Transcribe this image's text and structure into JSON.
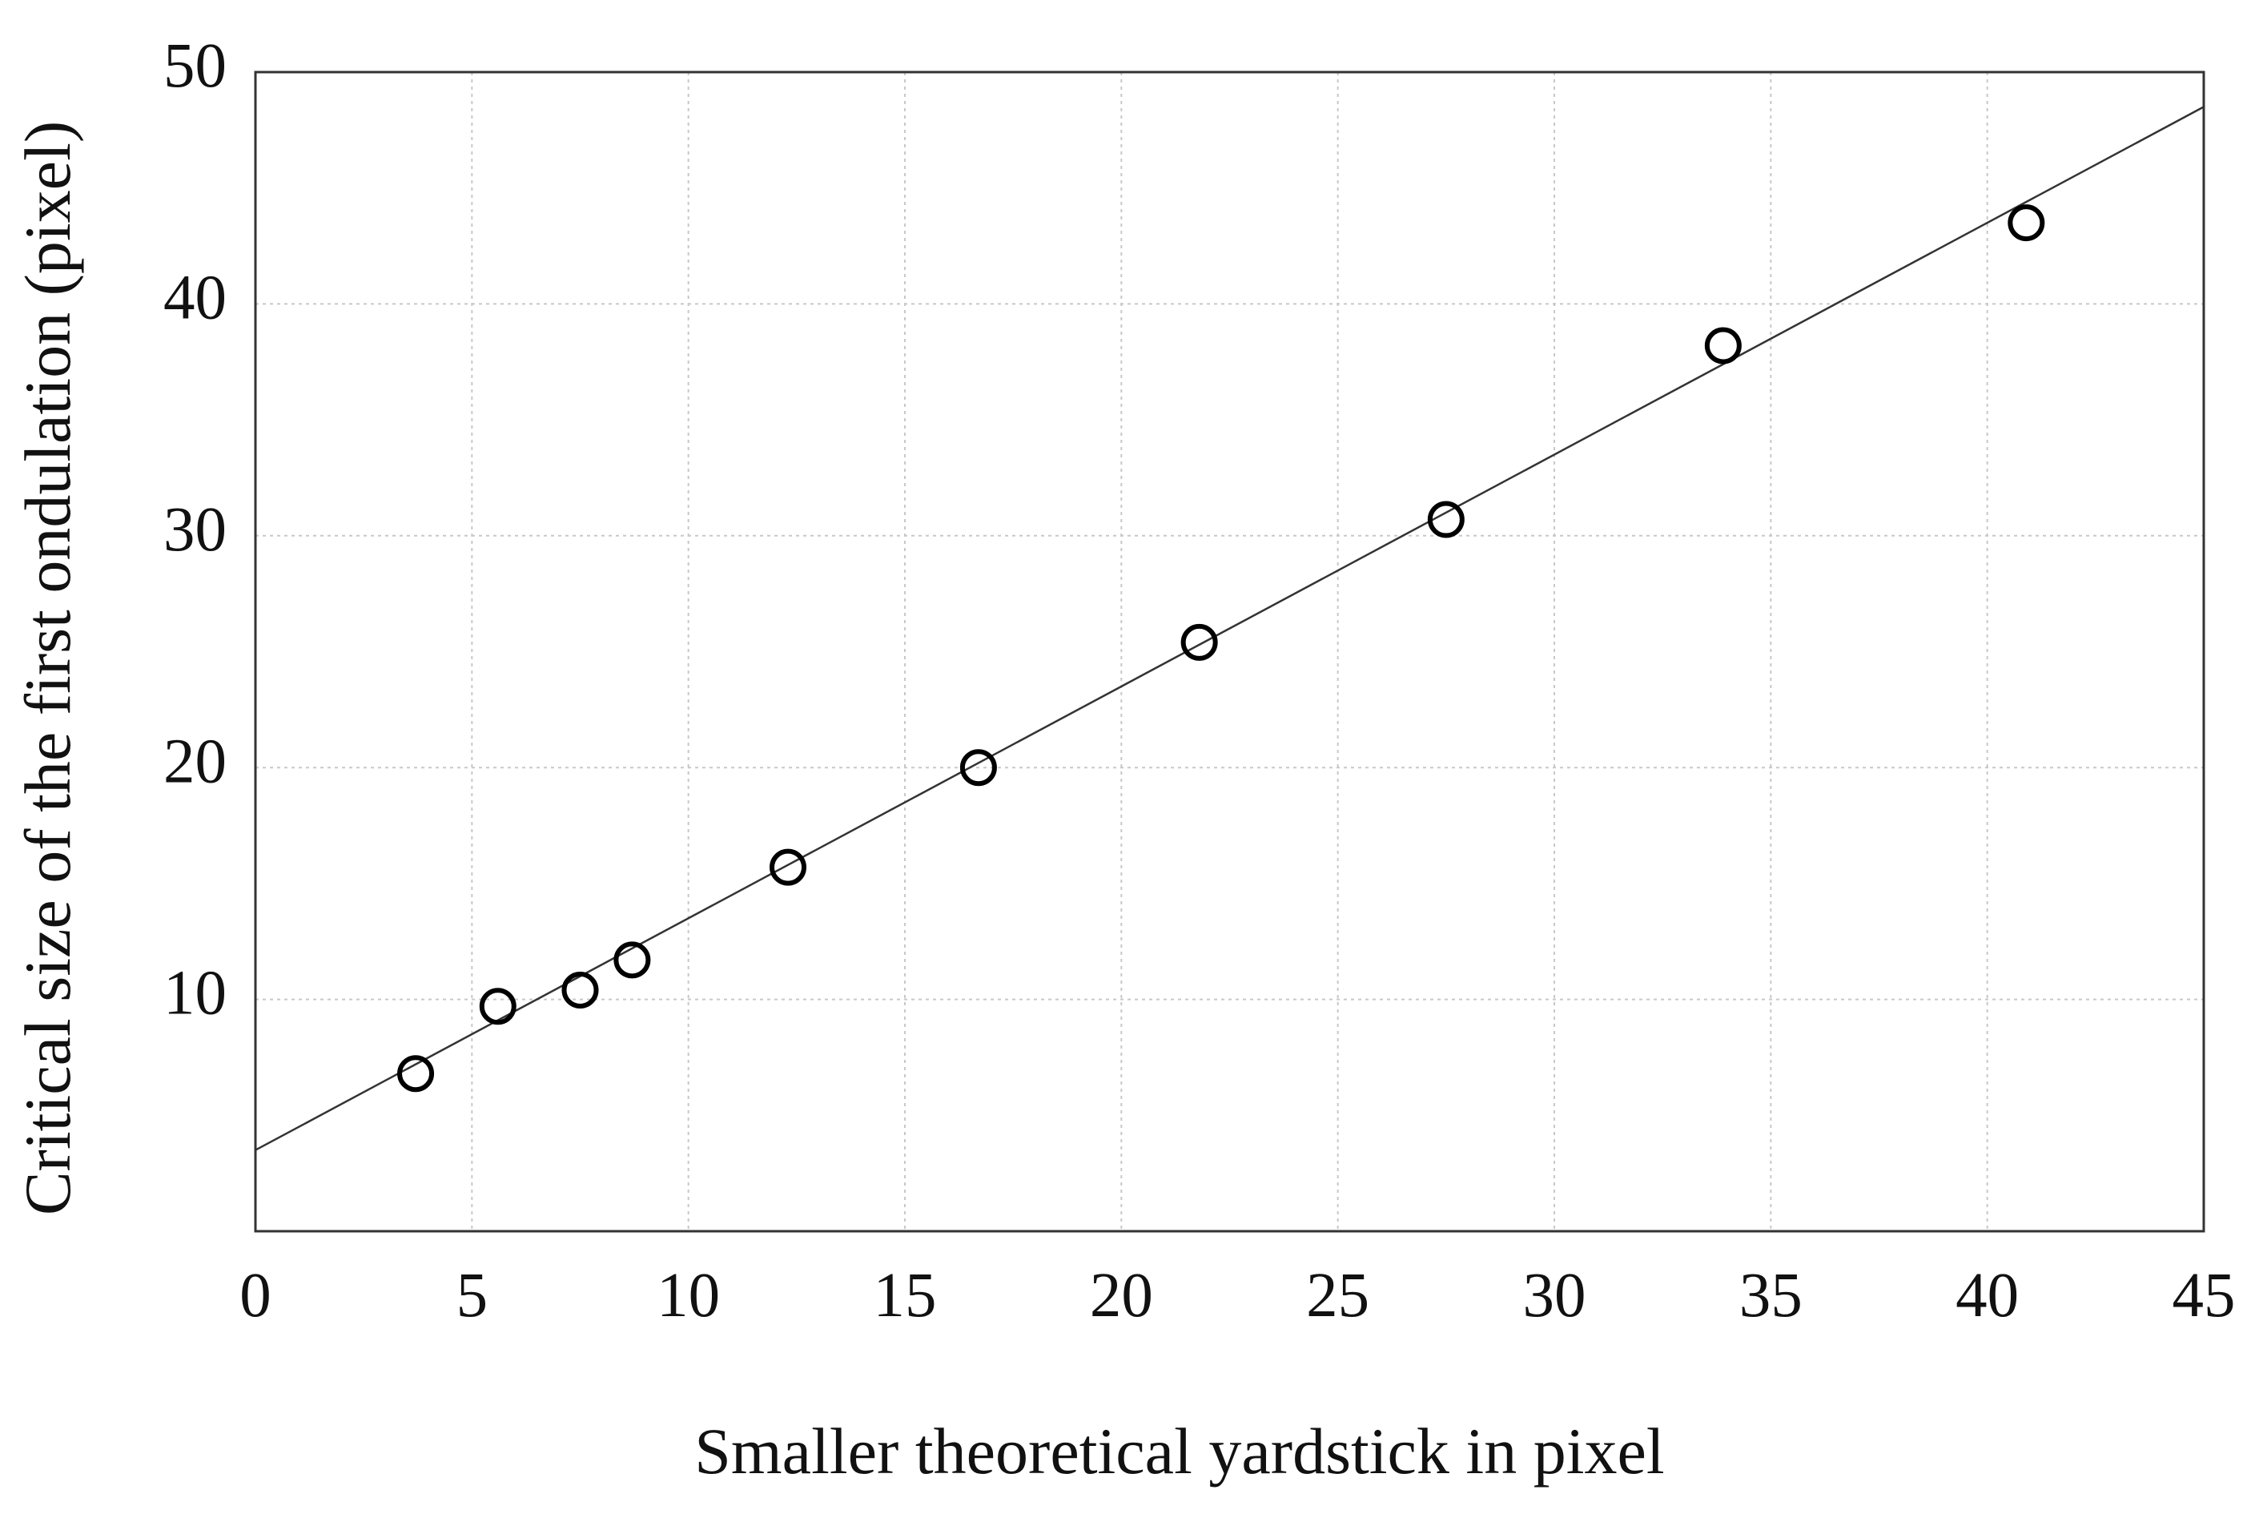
{
  "chart_data": {
    "type": "scatter",
    "x_label": "Smaller theoretical yardstick in pixel",
    "y_label": "Critical size of the first ondulation (pixel)",
    "x": [
      3.7,
      5.6,
      7.5,
      8.7,
      12.3,
      16.7,
      21.8,
      27.5,
      33.9,
      40.9
    ],
    "values": [
      6.8,
      9.7,
      10.4,
      11.7,
      15.7,
      20.0,
      25.4,
      30.7,
      38.2,
      43.5
    ],
    "fit": {
      "intercept": 3.5,
      "slope": 1.0
    },
    "marker_color": "#000000",
    "line_color": "#333333",
    "xlim": [
      0,
      45
    ],
    "ylim": [
      0,
      50
    ],
    "xticks": [
      0,
      5,
      10,
      15,
      20,
      25,
      30,
      35,
      40,
      45
    ],
    "yticks": [
      10,
      20,
      30,
      40,
      50
    ],
    "grid": true
  }
}
